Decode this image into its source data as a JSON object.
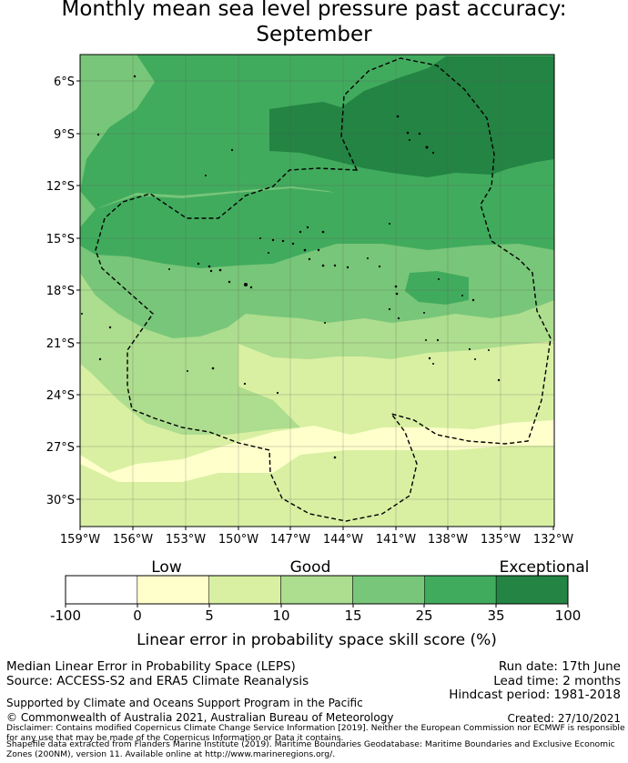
{
  "title": {
    "line1": "Monthly mean sea level pressure past accuracy:",
    "line2": "September"
  },
  "map": {
    "lat_labels": [
      "6°S",
      "9°S",
      "12°S",
      "15°S",
      "18°S",
      "21°S",
      "24°S",
      "27°S",
      "30°S"
    ],
    "lon_labels": [
      "159°W",
      "156°W",
      "153°W",
      "150°W",
      "147°W",
      "144°W",
      "141°W",
      "138°W",
      "135°W",
      "132°W"
    ],
    "colors": {
      "exceptional": "#238443",
      "35_100": "#238443",
      "25_35": "#41ab5d",
      "15_25": "#78c679",
      "10_15": "#addd8e",
      "5_10": "#d9f0a3",
      "0_5": "#ffffcc",
      "neg": "#ffffff"
    }
  },
  "colorbar": {
    "category_labels": [
      "Low",
      "Good",
      "Exceptional"
    ],
    "tick_labels": [
      "-100",
      "0",
      "5",
      "10",
      "15",
      "25",
      "35",
      "100"
    ],
    "bins": [
      {
        "from": -100,
        "to": 0,
        "color": "#ffffff"
      },
      {
        "from": 0,
        "to": 5,
        "color": "#ffffcc"
      },
      {
        "from": 5,
        "to": 10,
        "color": "#d9f0a3"
      },
      {
        "from": 10,
        "to": 15,
        "color": "#addd8e"
      },
      {
        "from": 15,
        "to": 25,
        "color": "#78c679"
      },
      {
        "from": 25,
        "to": 35,
        "color": "#41ab5d"
      },
      {
        "from": 35,
        "to": 100,
        "color": "#238443"
      }
    ],
    "axis_label": "Linear error in probability space skill score (%)"
  },
  "footer": {
    "method": "Median Linear Error in Probability Space (LEPS)",
    "source": "Source: ACCESS-S2 and ERA5 Climate Reanalysis",
    "run_date": "Run date: 17th June",
    "lead_time": "Lead time: 2 months",
    "hindcast": "Hindcast period: 1981-2018",
    "supported": "Supported by Climate and Oceans Support Program in the Pacific",
    "created": "Created: 27/10/2021",
    "copyright": "© Commonwealth of Australia 2021, Australian Bureau of Meteorology",
    "disclaimer": "Disclaimer: Contains modified Copernicus Climate Change Service Information [2019]. Neither the European Commission nor ECMWF is responsible for any use that may be made of the Copernicus Information or Data it contains.",
    "shapefile": "Shapefile data extracted from Flanders Marine Institute (2019). Maritime Boundaries Geodatabase: Maritime Boundaries and Exclusive Economic Zones (200NM), version 11. Available online at http://www.marineregions.org/."
  }
}
